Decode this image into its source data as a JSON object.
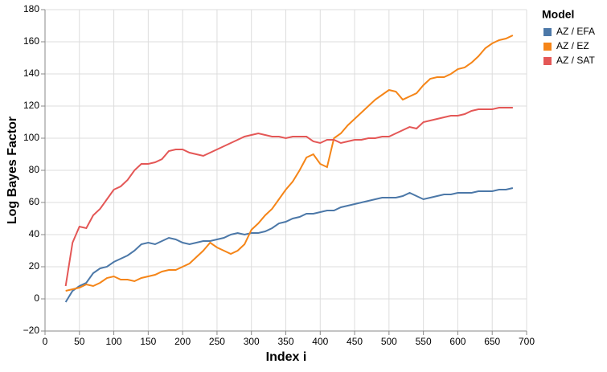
{
  "chart_data": {
    "type": "line",
    "x_label": "Index i",
    "y_label": "Log Bayes Factor",
    "legend_title": "Model",
    "legend_position": "right",
    "grid": true,
    "x": [
      30,
      40,
      50,
      60,
      70,
      80,
      90,
      100,
      110,
      120,
      130,
      140,
      150,
      160,
      170,
      180,
      190,
      200,
      210,
      220,
      230,
      240,
      250,
      260,
      270,
      280,
      290,
      300,
      310,
      320,
      330,
      340,
      350,
      360,
      370,
      380,
      390,
      400,
      410,
      420,
      430,
      440,
      450,
      460,
      470,
      480,
      490,
      500,
      510,
      520,
      530,
      540,
      550,
      560,
      570,
      580,
      590,
      600,
      610,
      620,
      630,
      640,
      650,
      660,
      670,
      680
    ],
    "series": [
      {
        "name": "AZ / EFA",
        "color": "#4c78a8",
        "values": [
          -2,
          5,
          8,
          10,
          16,
          19,
          20,
          23,
          25,
          27,
          30,
          34,
          35,
          34,
          36,
          38,
          37,
          35,
          34,
          35,
          36,
          36,
          37,
          38,
          40,
          41,
          40,
          41,
          41,
          42,
          44,
          47,
          48,
          50,
          51,
          53,
          53,
          54,
          55,
          55,
          57,
          58,
          59,
          60,
          61,
          62,
          63,
          63,
          63,
          64,
          66,
          64,
          62,
          63,
          64,
          65,
          65,
          66,
          66,
          66,
          67,
          67,
          67,
          68,
          68,
          69
        ]
      },
      {
        "name": "AZ / EZ",
        "color": "#f58518",
        "values": [
          5,
          6,
          7,
          9,
          8,
          10,
          13,
          14,
          12,
          12,
          11,
          13,
          14,
          15,
          17,
          18,
          18,
          20,
          22,
          26,
          30,
          35,
          32,
          30,
          28,
          30,
          34,
          43,
          47,
          52,
          56,
          62,
          68,
          73,
          80,
          88,
          90,
          84,
          82,
          100,
          103,
          108,
          112,
          116,
          120,
          124,
          127,
          130,
          129,
          124,
          126,
          128,
          133,
          137,
          138,
          138,
          140,
          143,
          144,
          147,
          151,
          156,
          159,
          161,
          162,
          164
        ]
      },
      {
        "name": "AZ / SAT",
        "color": "#e45756",
        "values": [
          8,
          35,
          45,
          44,
          52,
          56,
          62,
          68,
          70,
          74,
          80,
          84,
          84,
          85,
          87,
          92,
          93,
          93,
          91,
          90,
          89,
          91,
          93,
          95,
          97,
          99,
          101,
          102,
          103,
          102,
          101,
          101,
          100,
          101,
          101,
          101,
          98,
          97,
          99,
          99,
          97,
          98,
          99,
          99,
          100,
          100,
          101,
          101,
          103,
          105,
          107,
          106,
          110,
          111,
          112,
          113,
          114,
          114,
          115,
          117,
          118,
          118,
          118,
          119,
          119,
          119
        ]
      }
    ],
    "xlim": [
      0,
      700
    ],
    "xticks": [
      0,
      50,
      100,
      150,
      200,
      250,
      300,
      350,
      400,
      450,
      500,
      550,
      600,
      650,
      700
    ],
    "ylim": [
      -20,
      180
    ],
    "yticks": [
      {
        "value": -20,
        "label": "−20"
      },
      0,
      20,
      40,
      60,
      80,
      100,
      120,
      140,
      160,
      180
    ]
  }
}
